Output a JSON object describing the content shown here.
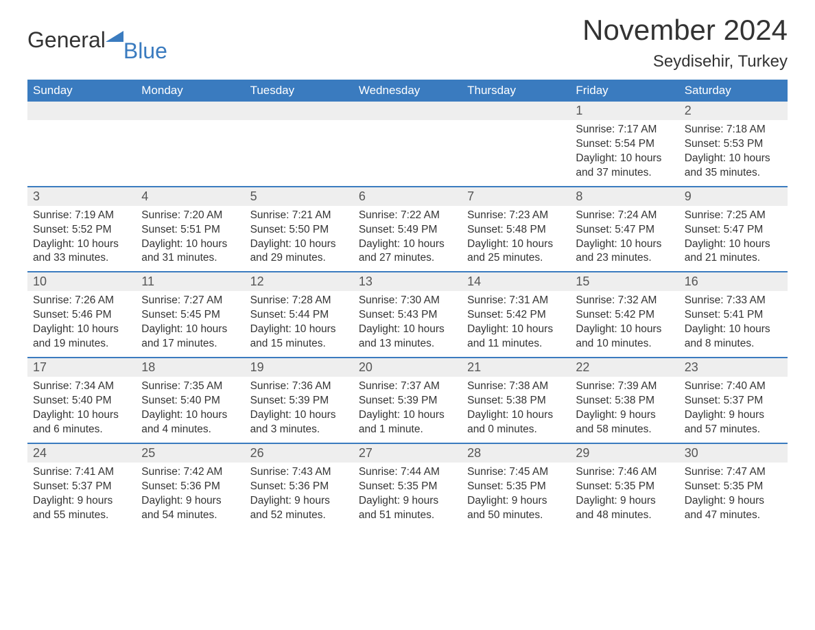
{
  "logo": {
    "text1": "General",
    "text2": "Blue",
    "text_color": "#333333",
    "accent_color": "#3a7bbf"
  },
  "title": "November 2024",
  "location": "Seydisehir, Turkey",
  "colors": {
    "header_bg": "#3a7bbf",
    "header_text": "#ffffff",
    "daynum_bg": "#eeeeee",
    "row_border": "#3a7bbf",
    "body_text": "#333333",
    "background": "#ffffff"
  },
  "day_names": [
    "Sunday",
    "Monday",
    "Tuesday",
    "Wednesday",
    "Thursday",
    "Friday",
    "Saturday"
  ],
  "weeks": [
    [
      {
        "empty": true
      },
      {
        "empty": true
      },
      {
        "empty": true
      },
      {
        "empty": true
      },
      {
        "empty": true
      },
      {
        "num": "1",
        "sunrise": "Sunrise: 7:17 AM",
        "sunset": "Sunset: 5:54 PM",
        "daylight1": "Daylight: 10 hours",
        "daylight2": "and 37 minutes."
      },
      {
        "num": "2",
        "sunrise": "Sunrise: 7:18 AM",
        "sunset": "Sunset: 5:53 PM",
        "daylight1": "Daylight: 10 hours",
        "daylight2": "and 35 minutes."
      }
    ],
    [
      {
        "num": "3",
        "sunrise": "Sunrise: 7:19 AM",
        "sunset": "Sunset: 5:52 PM",
        "daylight1": "Daylight: 10 hours",
        "daylight2": "and 33 minutes."
      },
      {
        "num": "4",
        "sunrise": "Sunrise: 7:20 AM",
        "sunset": "Sunset: 5:51 PM",
        "daylight1": "Daylight: 10 hours",
        "daylight2": "and 31 minutes."
      },
      {
        "num": "5",
        "sunrise": "Sunrise: 7:21 AM",
        "sunset": "Sunset: 5:50 PM",
        "daylight1": "Daylight: 10 hours",
        "daylight2": "and 29 minutes."
      },
      {
        "num": "6",
        "sunrise": "Sunrise: 7:22 AM",
        "sunset": "Sunset: 5:49 PM",
        "daylight1": "Daylight: 10 hours",
        "daylight2": "and 27 minutes."
      },
      {
        "num": "7",
        "sunrise": "Sunrise: 7:23 AM",
        "sunset": "Sunset: 5:48 PM",
        "daylight1": "Daylight: 10 hours",
        "daylight2": "and 25 minutes."
      },
      {
        "num": "8",
        "sunrise": "Sunrise: 7:24 AM",
        "sunset": "Sunset: 5:47 PM",
        "daylight1": "Daylight: 10 hours",
        "daylight2": "and 23 minutes."
      },
      {
        "num": "9",
        "sunrise": "Sunrise: 7:25 AM",
        "sunset": "Sunset: 5:47 PM",
        "daylight1": "Daylight: 10 hours",
        "daylight2": "and 21 minutes."
      }
    ],
    [
      {
        "num": "10",
        "sunrise": "Sunrise: 7:26 AM",
        "sunset": "Sunset: 5:46 PM",
        "daylight1": "Daylight: 10 hours",
        "daylight2": "and 19 minutes."
      },
      {
        "num": "11",
        "sunrise": "Sunrise: 7:27 AM",
        "sunset": "Sunset: 5:45 PM",
        "daylight1": "Daylight: 10 hours",
        "daylight2": "and 17 minutes."
      },
      {
        "num": "12",
        "sunrise": "Sunrise: 7:28 AM",
        "sunset": "Sunset: 5:44 PM",
        "daylight1": "Daylight: 10 hours",
        "daylight2": "and 15 minutes."
      },
      {
        "num": "13",
        "sunrise": "Sunrise: 7:30 AM",
        "sunset": "Sunset: 5:43 PM",
        "daylight1": "Daylight: 10 hours",
        "daylight2": "and 13 minutes."
      },
      {
        "num": "14",
        "sunrise": "Sunrise: 7:31 AM",
        "sunset": "Sunset: 5:42 PM",
        "daylight1": "Daylight: 10 hours",
        "daylight2": "and 11 minutes."
      },
      {
        "num": "15",
        "sunrise": "Sunrise: 7:32 AM",
        "sunset": "Sunset: 5:42 PM",
        "daylight1": "Daylight: 10 hours",
        "daylight2": "and 10 minutes."
      },
      {
        "num": "16",
        "sunrise": "Sunrise: 7:33 AM",
        "sunset": "Sunset: 5:41 PM",
        "daylight1": "Daylight: 10 hours",
        "daylight2": "and 8 minutes."
      }
    ],
    [
      {
        "num": "17",
        "sunrise": "Sunrise: 7:34 AM",
        "sunset": "Sunset: 5:40 PM",
        "daylight1": "Daylight: 10 hours",
        "daylight2": "and 6 minutes."
      },
      {
        "num": "18",
        "sunrise": "Sunrise: 7:35 AM",
        "sunset": "Sunset: 5:40 PM",
        "daylight1": "Daylight: 10 hours",
        "daylight2": "and 4 minutes."
      },
      {
        "num": "19",
        "sunrise": "Sunrise: 7:36 AM",
        "sunset": "Sunset: 5:39 PM",
        "daylight1": "Daylight: 10 hours",
        "daylight2": "and 3 minutes."
      },
      {
        "num": "20",
        "sunrise": "Sunrise: 7:37 AM",
        "sunset": "Sunset: 5:39 PM",
        "daylight1": "Daylight: 10 hours",
        "daylight2": "and 1 minute."
      },
      {
        "num": "21",
        "sunrise": "Sunrise: 7:38 AM",
        "sunset": "Sunset: 5:38 PM",
        "daylight1": "Daylight: 10 hours",
        "daylight2": "and 0 minutes."
      },
      {
        "num": "22",
        "sunrise": "Sunrise: 7:39 AM",
        "sunset": "Sunset: 5:38 PM",
        "daylight1": "Daylight: 9 hours",
        "daylight2": "and 58 minutes."
      },
      {
        "num": "23",
        "sunrise": "Sunrise: 7:40 AM",
        "sunset": "Sunset: 5:37 PM",
        "daylight1": "Daylight: 9 hours",
        "daylight2": "and 57 minutes."
      }
    ],
    [
      {
        "num": "24",
        "sunrise": "Sunrise: 7:41 AM",
        "sunset": "Sunset: 5:37 PM",
        "daylight1": "Daylight: 9 hours",
        "daylight2": "and 55 minutes."
      },
      {
        "num": "25",
        "sunrise": "Sunrise: 7:42 AM",
        "sunset": "Sunset: 5:36 PM",
        "daylight1": "Daylight: 9 hours",
        "daylight2": "and 54 minutes."
      },
      {
        "num": "26",
        "sunrise": "Sunrise: 7:43 AM",
        "sunset": "Sunset: 5:36 PM",
        "daylight1": "Daylight: 9 hours",
        "daylight2": "and 52 minutes."
      },
      {
        "num": "27",
        "sunrise": "Sunrise: 7:44 AM",
        "sunset": "Sunset: 5:35 PM",
        "daylight1": "Daylight: 9 hours",
        "daylight2": "and 51 minutes."
      },
      {
        "num": "28",
        "sunrise": "Sunrise: 7:45 AM",
        "sunset": "Sunset: 5:35 PM",
        "daylight1": "Daylight: 9 hours",
        "daylight2": "and 50 minutes."
      },
      {
        "num": "29",
        "sunrise": "Sunrise: 7:46 AM",
        "sunset": "Sunset: 5:35 PM",
        "daylight1": "Daylight: 9 hours",
        "daylight2": "and 48 minutes."
      },
      {
        "num": "30",
        "sunrise": "Sunrise: 7:47 AM",
        "sunset": "Sunset: 5:35 PM",
        "daylight1": "Daylight: 9 hours",
        "daylight2": "and 47 minutes."
      }
    ]
  ]
}
